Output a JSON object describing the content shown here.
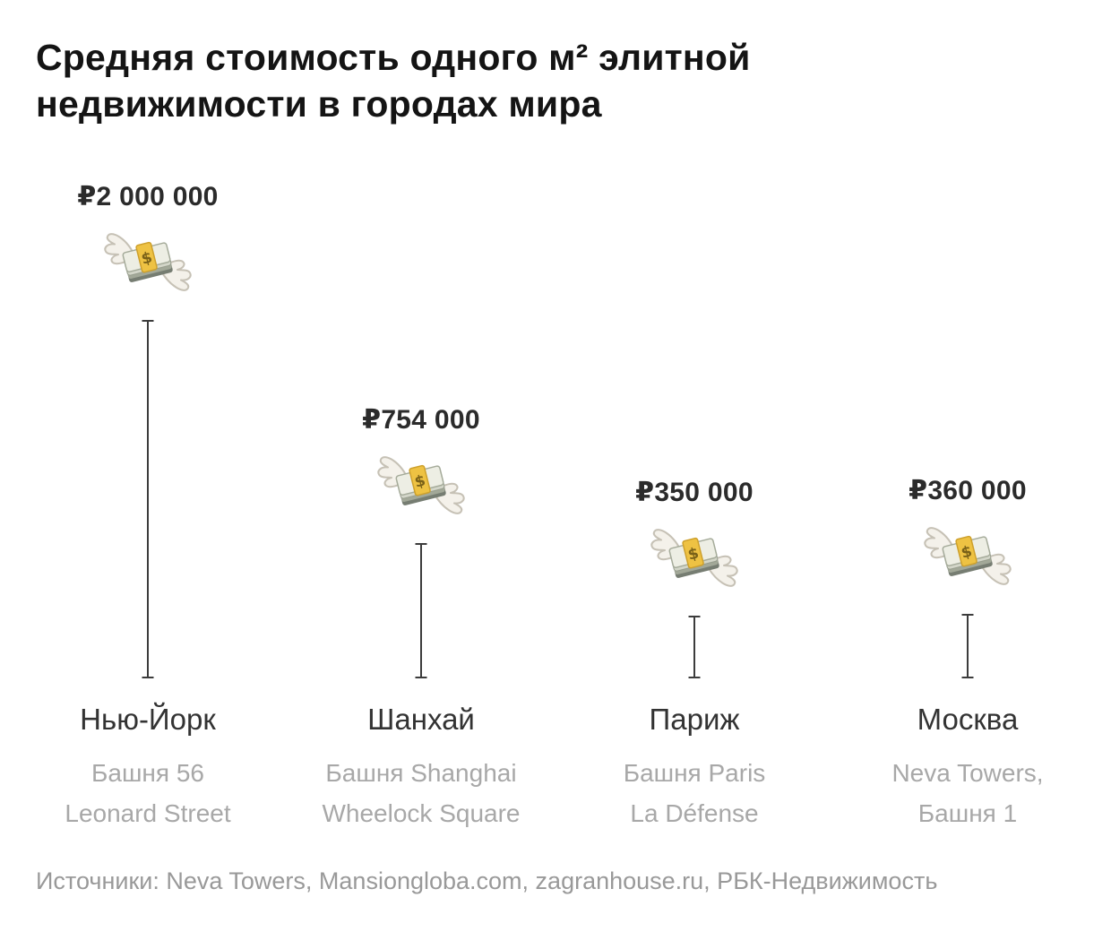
{
  "title": "Средняя стоимость одного м² элитной недвижимости в городах мира",
  "footer": "Источники: Neva Towers, Mansiongloba.com, zagranhouse.ru, РБК-Недвижимость",
  "icons": {
    "money_with_wings": "money-with-wings-icon"
  },
  "chart_data": {
    "type": "bar",
    "title": "Средняя стоимость одного м² элитной недвижимости в городах мира",
    "unit": "₽ за м²",
    "currency": "RUB",
    "categories": [
      "Нью-Йорк",
      "Шанхай",
      "Париж",
      "Москва"
    ],
    "values": [
      2000000,
      754000,
      350000,
      360000
    ],
    "points": [
      {
        "city": "Нью-Йорк",
        "value": 2000000,
        "value_label": "₽2 000 000",
        "subtitle_line1": "Башня 56",
        "subtitle_line2": "Leonard Street"
      },
      {
        "city": "Шанхай",
        "value": 754000,
        "value_label": "₽754 000",
        "subtitle_line1": "Башня Shanghai",
        "subtitle_line2": "Wheelock Square"
      },
      {
        "city": "Париж",
        "value": 350000,
        "value_label": "₽350 000",
        "subtitle_line1": "Башня Paris",
        "subtitle_line2": "La Défense"
      },
      {
        "city": "Москва",
        "value": 360000,
        "value_label": "₽360 000",
        "subtitle_line1": "Neva Towers,",
        "subtitle_line2": "Башня 1"
      }
    ],
    "sources_note": "Источники: Neva Towers, Mansiongloba.com, zagranhouse.ru, РБК-Недвижимость",
    "legend": "none",
    "grid": "off",
    "axis": "hidden"
  }
}
